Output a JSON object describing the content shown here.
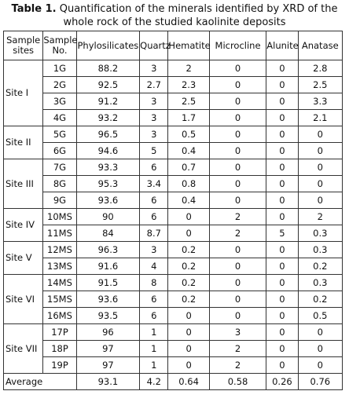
{
  "caption": {
    "label": "Table 1.",
    "text": "Quantification of the minerals identified by XRD of the whole rock of the studied kaolinite deposits"
  },
  "table": {
    "header": [
      "Sample sites",
      "Sample No.",
      "Phylosilicates",
      "Quartz",
      "Hematite",
      "Microcline",
      "Alunite",
      "Anatase"
    ],
    "groups": [
      {
        "site": "Site I",
        "rows": [
          {
            "sample": "1G",
            "values": [
              "88.2",
              "3",
              "2",
              "0",
              "0",
              "2.8"
            ]
          },
          {
            "sample": "2G",
            "values": [
              "92.5",
              "2.7",
              "2.3",
              "0",
              "0",
              "2.5"
            ]
          },
          {
            "sample": "3G",
            "values": [
              "91.2",
              "3",
              "2.5",
              "0",
              "0",
              "3.3"
            ]
          },
          {
            "sample": "4G",
            "values": [
              "93.2",
              "3",
              "1.7",
              "0",
              "0",
              "2.1"
            ]
          }
        ]
      },
      {
        "site": "Site II",
        "rows": [
          {
            "sample": "5G",
            "values": [
              "96.5",
              "3",
              "0.5",
              "0",
              "0",
              "0"
            ]
          },
          {
            "sample": "6G",
            "values": [
              "94.6",
              "5",
              "0.4",
              "0",
              "0",
              "0"
            ]
          }
        ]
      },
      {
        "site": "Site III",
        "rows": [
          {
            "sample": "7G",
            "values": [
              "93.3",
              "6",
              "0.7",
              "0",
              "0",
              "0"
            ]
          },
          {
            "sample": "8G",
            "values": [
              "95.3",
              "3.4",
              "0.8",
              "0",
              "0",
              "0"
            ]
          },
          {
            "sample": "9G",
            "values": [
              "93.6",
              "6",
              "0.4",
              "0",
              "0",
              "0"
            ]
          }
        ]
      },
      {
        "site": "Site IV",
        "rows": [
          {
            "sample": "10MS",
            "values": [
              "90",
              "6",
              "0",
              "2",
              "0",
              "2"
            ]
          },
          {
            "sample": "11MS",
            "values": [
              "84",
              "8.7",
              "0",
              "2",
              "5",
              "0.3"
            ]
          }
        ]
      },
      {
        "site": "Site V",
        "rows": [
          {
            "sample": "12MS",
            "values": [
              "96.3",
              "3",
              "0.2",
              "0",
              "0",
              "0.3"
            ]
          },
          {
            "sample": "13MS",
            "values": [
              "91.6",
              "4",
              "0.2",
              "0",
              "0",
              "0.2"
            ]
          }
        ]
      },
      {
        "site": "Site VI",
        "rows": [
          {
            "sample": "14MS",
            "values": [
              "91.5",
              "8",
              "0.2",
              "0",
              "0",
              "0.3"
            ]
          },
          {
            "sample": "15MS",
            "values": [
              "93.6",
              "6",
              "0.2",
              "0",
              "0",
              "0.2"
            ]
          },
          {
            "sample": "16MS",
            "values": [
              "93.5",
              "6",
              "0",
              "0",
              "0",
              "0.5"
            ]
          }
        ]
      },
      {
        "site": "Site VII",
        "rows": [
          {
            "sample": "17P",
            "values": [
              "96",
              "1",
              "0",
              "3",
              "0",
              "0"
            ]
          },
          {
            "sample": "18P",
            "values": [
              "97",
              "1",
              "0",
              "2",
              "0",
              "0"
            ]
          },
          {
            "sample": "19P",
            "values": [
              "97",
              "1",
              "0",
              "2",
              "0",
              "0"
            ]
          }
        ]
      }
    ],
    "average": {
      "label": "Average",
      "values": [
        "93.1",
        "4.2",
        "0.64",
        "0.58",
        "0.26",
        "0.76"
      ]
    }
  }
}
